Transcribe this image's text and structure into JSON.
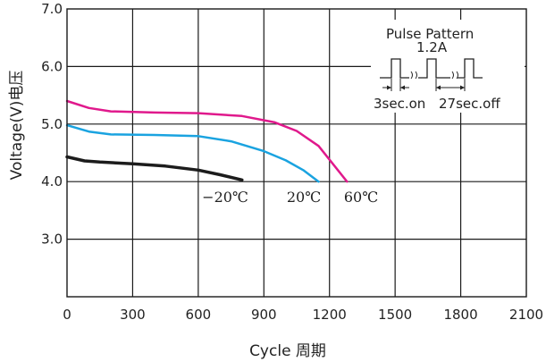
{
  "chart_data": {
    "type": "line",
    "xlabel": "Cycle 周期",
    "ylabel": "Voltage(V)电压",
    "xlim": [
      0,
      2100
    ],
    "ylim": [
      2.0,
      7.0
    ],
    "x_ticks": [
      "0",
      "300",
      "600",
      "900",
      "1200",
      "1500",
      "1800",
      "2100"
    ],
    "y_ticks": [
      "3.0",
      "4.0",
      "5.0",
      "6.0",
      "7.0"
    ],
    "grid": true,
    "series": [
      {
        "name": "60℃",
        "color": "#e0198c",
        "points": [
          [
            0,
            5.4
          ],
          [
            100,
            5.28
          ],
          [
            200,
            5.22
          ],
          [
            400,
            5.2
          ],
          [
            600,
            5.19
          ],
          [
            800,
            5.14
          ],
          [
            950,
            5.03
          ],
          [
            1050,
            4.88
          ],
          [
            1150,
            4.62
          ],
          [
            1280,
            4.0
          ]
        ]
      },
      {
        "name": "20℃",
        "color": "#1aa3e0",
        "points": [
          [
            0,
            4.98
          ],
          [
            100,
            4.87
          ],
          [
            200,
            4.82
          ],
          [
            400,
            4.81
          ],
          [
            600,
            4.79
          ],
          [
            750,
            4.7
          ],
          [
            900,
            4.53
          ],
          [
            1000,
            4.37
          ],
          [
            1080,
            4.2
          ],
          [
            1150,
            4.0
          ]
        ]
      },
      {
        "name": "−20℃",
        "color": "#1c1c1c",
        "points": [
          [
            0,
            4.43
          ],
          [
            80,
            4.36
          ],
          [
            150,
            4.34
          ],
          [
            300,
            4.31
          ],
          [
            450,
            4.27
          ],
          [
            600,
            4.2
          ],
          [
            700,
            4.12
          ],
          [
            800,
            4.03
          ]
        ]
      }
    ],
    "annotations": {
      "pulse_title": "Pulse  Pattern",
      "pulse_current": "1.2A",
      "on_label": "3sec.on",
      "off_label": "27sec.off"
    }
  }
}
